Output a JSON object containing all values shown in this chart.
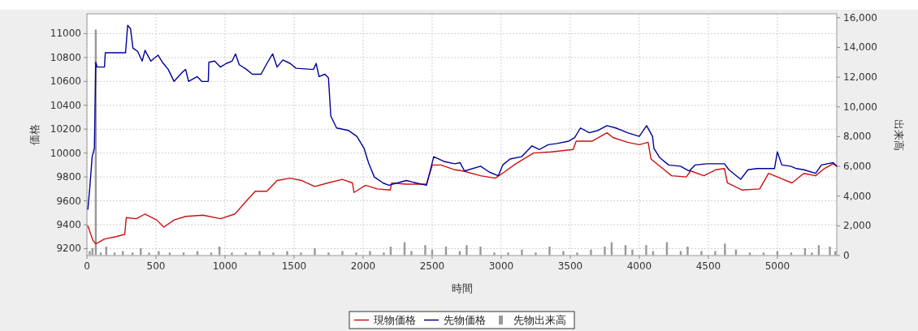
{
  "chart_data": {
    "type": "line",
    "xlabel": "時間",
    "ylabel": "価格",
    "y2label": "出来高",
    "xlim": [
      0,
      5430
    ],
    "xticks": [
      0,
      500,
      1000,
      1500,
      2000,
      2500,
      3000,
      3500,
      4000,
      4500,
      5000
    ],
    "ylim": [
      9142,
      11166
    ],
    "yticks": [
      9200,
      9400,
      9600,
      9800,
      10000,
      10200,
      10400,
      10600,
      10800,
      11000
    ],
    "y2lim": [
      0,
      16260
    ],
    "y2ticks": [
      0,
      {
        "value": 2000,
        "label": "2,000"
      },
      {
        "value": 4000,
        "label": "4,000"
      },
      {
        "value": 6000,
        "label": "6,000"
      },
      {
        "value": 8000,
        "label": "8,000"
      },
      {
        "value": 10000,
        "label": "10,000"
      },
      {
        "value": 12000,
        "label": "12,000"
      },
      {
        "value": 14000,
        "label": "14,000"
      },
      {
        "value": 16000,
        "label": "16,000"
      }
    ],
    "grid": true,
    "legend": "bottom",
    "series": [
      {
        "name": "現物価格",
        "color": "#cc1111",
        "x": [
          7,
          43,
          64,
          127,
          211,
          274,
          285,
          358,
          421,
          505,
          557,
          631,
          715,
          841,
          967,
          1072,
          1156,
          1219,
          1303,
          1377,
          1472,
          1556,
          1650,
          1745,
          1850,
          1923,
          1934,
          2018,
          2102,
          2196,
          2207,
          2312,
          2459,
          2501,
          2564,
          2664,
          2723,
          2851,
          2957,
          3021,
          3106,
          3234,
          3362,
          3521,
          3543,
          3660,
          3766,
          3809,
          3915,
          4000,
          4064,
          4085,
          4170,
          4234,
          4340,
          4372,
          4468,
          4553,
          4617,
          4638,
          4745,
          4872,
          4936,
          5021,
          5106,
          5191,
          5277,
          5340,
          5404,
          5430
        ],
        "values": [
          9390,
          9270,
          9240,
          9280,
          9300,
          9320,
          9460,
          9450,
          9490,
          9440,
          9380,
          9440,
          9470,
          9480,
          9450,
          9490,
          9600,
          9680,
          9680,
          9770,
          9790,
          9770,
          9720,
          9750,
          9780,
          9750,
          9670,
          9730,
          9700,
          9690,
          9750,
          9740,
          9740,
          9900,
          9900,
          9860,
          9850,
          9810,
          9790,
          9840,
          9910,
          10000,
          10010,
          10030,
          10100,
          10100,
          10170,
          10130,
          10090,
          10070,
          10090,
          9950,
          9870,
          9810,
          9800,
          9850,
          9810,
          9860,
          9870,
          9750,
          9690,
          9700,
          9830,
          9790,
          9750,
          9830,
          9810,
          9870,
          9910,
          9890
        ]
      },
      {
        "name": "先物価格",
        "color": "#000099",
        "x": [
          7,
          20,
          38,
          54,
          64,
          74,
          127,
          133,
          280,
          295,
          316,
          333,
          368,
          400,
          421,
          463,
          515,
          547,
          589,
          631,
          694,
          715,
          736,
          799,
          831,
          879,
          883,
          925,
          967,
          1009,
          1051,
          1076,
          1103,
          1156,
          1198,
          1261,
          1303,
          1345,
          1377,
          1419,
          1472,
          1514,
          1640,
          1660,
          1681,
          1723,
          1749,
          1766,
          1808,
          1892,
          1955,
          2007,
          2039,
          2081,
          2144,
          2186,
          2312,
          2459,
          2490,
          2511,
          2585,
          2664,
          2702,
          2734,
          2851,
          2915,
          2979,
          3011,
          3064,
          3149,
          3223,
          3277,
          3340,
          3404,
          3489,
          3532,
          3574,
          3638,
          3702,
          3766,
          3830,
          3915,
          4000,
          4053,
          4096,
          4106,
          4149,
          4213,
          4298,
          4362,
          4404,
          4489,
          4617,
          4649,
          4734,
          4787,
          4851,
          4979,
          5000,
          5032,
          5096,
          5138,
          5191,
          5277,
          5319,
          5404,
          5430
        ],
        "values": [
          9530,
          9700,
          9970,
          10040,
          10760,
          10720,
          10720,
          10840,
          10840,
          11070,
          11040,
          10880,
          10850,
          10770,
          10860,
          10770,
          10820,
          10760,
          10700,
          10600,
          10680,
          10700,
          10600,
          10640,
          10600,
          10600,
          10760,
          10770,
          10720,
          10750,
          10770,
          10830,
          10740,
          10700,
          10660,
          10660,
          10750,
          10830,
          10720,
          10780,
          10750,
          10710,
          10700,
          10750,
          10640,
          10660,
          10630,
          10310,
          10210,
          10190,
          10140,
          10040,
          9920,
          9800,
          9750,
          9730,
          9770,
          9730,
          9870,
          9970,
          9930,
          9910,
          9920,
          9850,
          9890,
          9840,
          9810,
          9900,
          9950,
          9970,
          10060,
          10030,
          10070,
          10080,
          10100,
          10130,
          10210,
          10170,
          10190,
          10230,
          10210,
          10170,
          10140,
          10230,
          10140,
          10040,
          9960,
          9900,
          9890,
          9850,
          9900,
          9910,
          9910,
          9860,
          9780,
          9860,
          9870,
          9870,
          10010,
          9900,
          9890,
          9870,
          9860,
          9830,
          9900,
          9920,
          9890
        ]
      },
      {
        "name": "先物出来高",
        "type": "bar",
        "axis": "y2",
        "color": "#999999",
        "x": [
          20,
          40,
          64,
          100,
          140,
          200,
          260,
          330,
          390,
          450,
          520,
          600,
          700,
          800,
          900,
          960,
          1050,
          1150,
          1250,
          1350,
          1450,
          1550,
          1650,
          1750,
          1850,
          1950,
          2050,
          2150,
          2200,
          2300,
          2350,
          2450,
          2500,
          2600,
          2700,
          2750,
          2850,
          2950,
          3050,
          3150,
          3250,
          3350,
          3450,
          3550,
          3650,
          3750,
          3800,
          3900,
          3950,
          4050,
          4100,
          4200,
          4300,
          4350,
          4450,
          4550,
          4620,
          4700,
          4800,
          4900,
          5000,
          5100,
          5200,
          5250,
          5300,
          5380,
          5420
        ],
        "values": [
          300,
          500,
          15200,
          200,
          600,
          200,
          300,
          200,
          500,
          200,
          300,
          200,
          200,
          300,
          200,
          600,
          200,
          200,
          300,
          200,
          300,
          200,
          500,
          200,
          300,
          200,
          300,
          200,
          600,
          900,
          300,
          700,
          400,
          600,
          300,
          700,
          600,
          200,
          200,
          400,
          200,
          600,
          300,
          200,
          400,
          600,
          900,
          700,
          400,
          700,
          300,
          900,
          300,
          600,
          300,
          300,
          800,
          400,
          200,
          200,
          300,
          200,
          500,
          200,
          700,
          600,
          300
        ]
      }
    ]
  }
}
